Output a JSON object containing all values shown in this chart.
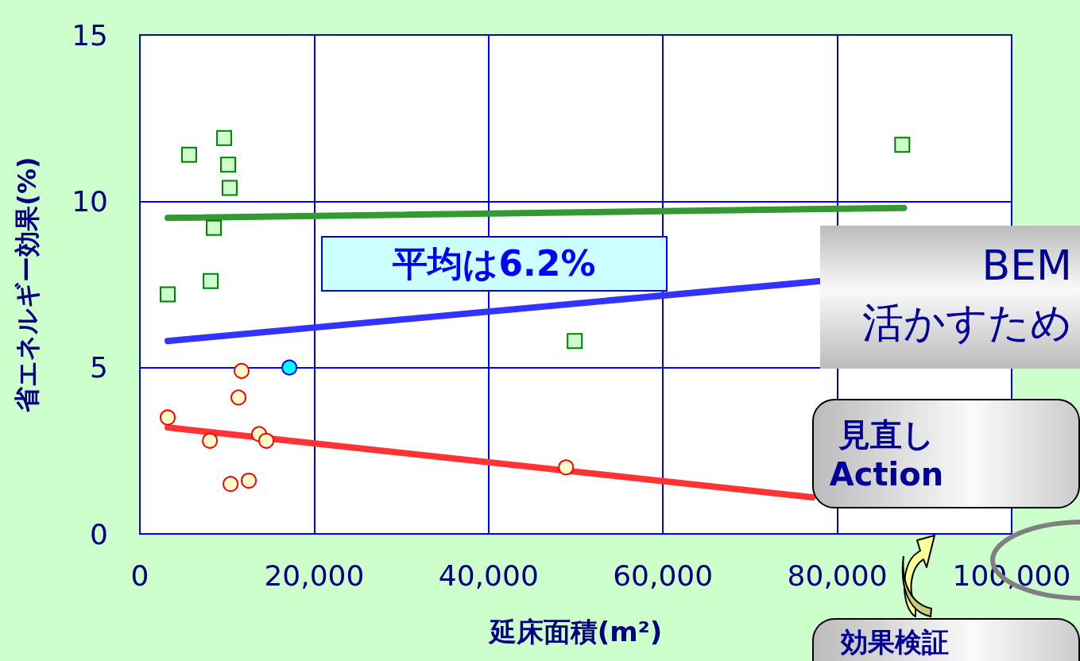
{
  "chart_data": {
    "type": "scatter",
    "xlabel": "延床面積(m²)",
    "ylabel": "省エネルギー効果(%)",
    "xlim": [
      0,
      100000
    ],
    "xticks": [
      0,
      {
        "value": 20000,
        "label": "20,000"
      },
      {
        "value": 40000,
        "label": "40,000"
      },
      {
        "value": 60000,
        "label": "60,000"
      },
      {
        "value": 80000,
        "label": "80,000"
      },
      {
        "value": 100000,
        "label": "100,000"
      }
    ],
    "ylim": [
      0,
      15
    ],
    "yticks": [
      0,
      5,
      10,
      15
    ],
    "grid": true,
    "series": [
      {
        "marker": "square",
        "color": "#008000",
        "x": [
          5650,
          9670,
          10120,
          10300,
          8480,
          8120,
          3190,
          49880,
          87450
        ],
        "values": [
          11.4,
          11.9,
          11.1,
          10.4,
          9.2,
          7.6,
          7.2,
          5.8,
          11.7
        ]
      },
      {
        "marker": "circle",
        "color": "#ff0000",
        "x": [
          3190,
          8030,
          11670,
          11310,
          13680,
          14500,
          10400,
          12490,
          48880
        ],
        "values": [
          3.5,
          2.8,
          4.9,
          4.1,
          3.0,
          2.8,
          1.5,
          1.6,
          2.0
        ]
      },
      {
        "marker": "circle",
        "color": "#00ffff",
        "x": [
          17150
        ],
        "values": [
          5.0
        ]
      },
      {
        "type": "line",
        "marker": "none",
        "color": "#339933",
        "x": [
          3190,
          87640
        ],
        "values": [
          9.5,
          9.8
        ]
      },
      {
        "type": "line",
        "marker": "none",
        "color": "#3333ff",
        "x": [
          3190,
          78070
        ],
        "values": [
          5.8,
          7.6
        ]
      },
      {
        "type": "line",
        "marker": "none",
        "color": "#ff3333",
        "x": [
          3190,
          77150
        ],
        "values": [
          3.2,
          1.1
        ]
      }
    ],
    "annotations": [
      "平均は6.2%",
      "BEM\n活かすため",
      "見直し\nAction",
      "効果検証"
    ]
  }
}
